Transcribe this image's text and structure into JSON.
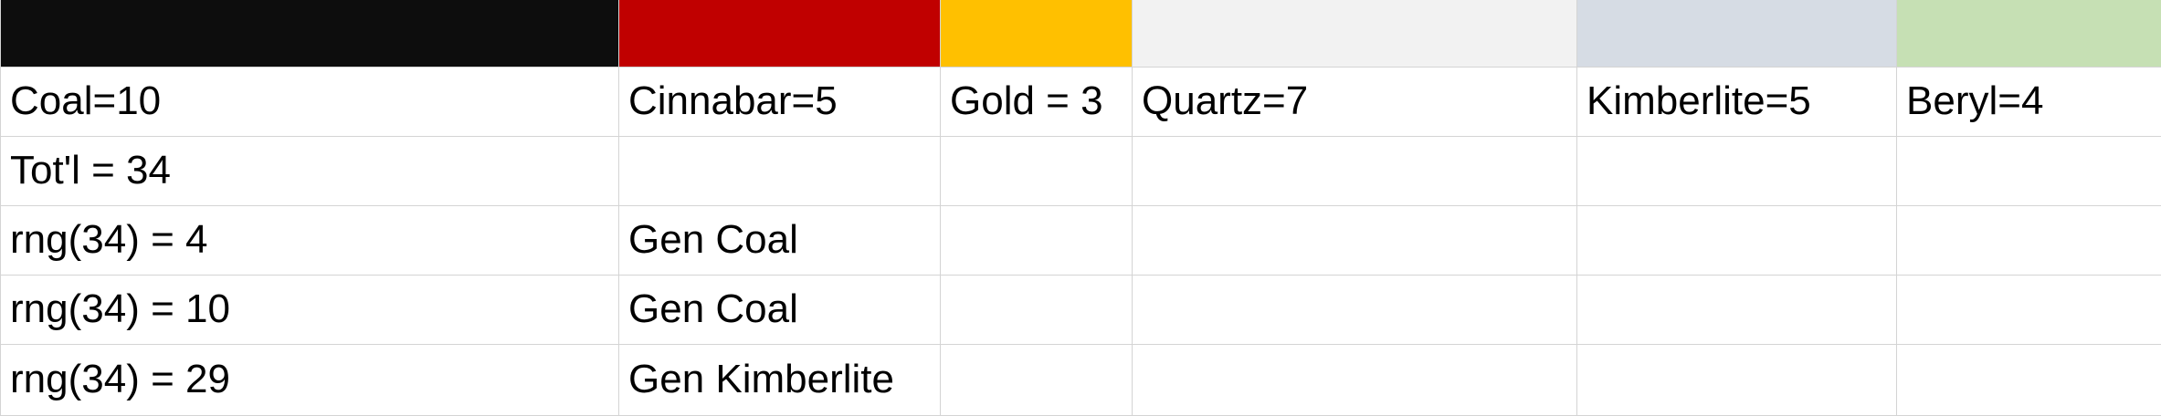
{
  "swatches": {
    "coal": "#0d0d0d",
    "cinnabar": "#c00000",
    "gold": "#ffc000",
    "quartz": "#f2f2f2",
    "kimberlite": "#d6dce4",
    "beryl": "#c6e0b4"
  },
  "grid": {
    "line_color": "#d4d4d4",
    "text_color": "#000000"
  },
  "rows": [
    {
      "a": "Coal=10",
      "b": "Cinnabar=5",
      "c": "Gold = 3",
      "d": "Quartz=7",
      "e": "Kimberlite=5",
      "f": "Beryl=4"
    },
    {
      "a": "Tot'l = 34",
      "b": "",
      "c": "",
      "d": "",
      "e": "",
      "f": ""
    },
    {
      "a": "rng(34) = 4",
      "b": "Gen Coal",
      "c": "",
      "d": "",
      "e": "",
      "f": ""
    },
    {
      "a": "rng(34) = 10",
      "b": "Gen Coal",
      "c": "",
      "d": "",
      "e": "",
      "f": ""
    },
    {
      "a": "rng(34) = 29",
      "b": "Gen Kimberlite",
      "c": "",
      "d": "",
      "e": "",
      "f": ""
    }
  ]
}
